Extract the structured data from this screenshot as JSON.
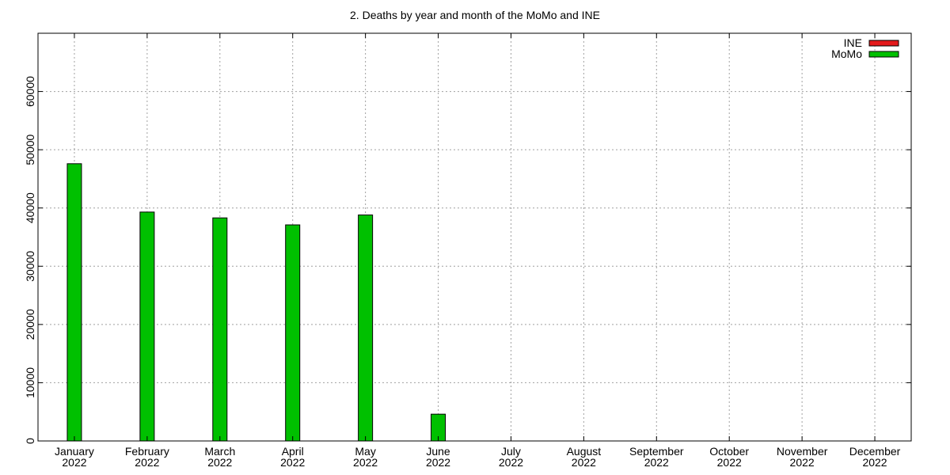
{
  "chart_data": {
    "type": "bar",
    "title": "2. Deaths by year and month of the MoMo and INE",
    "xlabel": "",
    "ylabel": "",
    "categories": [
      [
        "January",
        "2022"
      ],
      [
        "February",
        "2022"
      ],
      [
        "March",
        "2022"
      ],
      [
        "April",
        "2022"
      ],
      [
        "May",
        "2022"
      ],
      [
        "June",
        "2022"
      ],
      [
        "July",
        "2022"
      ],
      [
        "August",
        "2022"
      ],
      [
        "September",
        "2022"
      ],
      [
        "October",
        "2022"
      ],
      [
        "November",
        "2022"
      ],
      [
        "December",
        "2022"
      ]
    ],
    "ylim": [
      0,
      70000
    ],
    "yticks": [
      0,
      10000,
      20000,
      30000,
      40000,
      50000,
      60000
    ],
    "grid": true,
    "legend_position": "top-right",
    "series": [
      {
        "name": "INE",
        "color": "#e41a1c",
        "values": [
          null,
          null,
          null,
          null,
          null,
          null,
          null,
          null,
          null,
          null,
          null,
          null
        ]
      },
      {
        "name": "MoMo",
        "color": "#00c000",
        "values": [
          47600,
          39300,
          38300,
          37100,
          38800,
          4600,
          null,
          null,
          null,
          null,
          null,
          null
        ]
      }
    ]
  }
}
